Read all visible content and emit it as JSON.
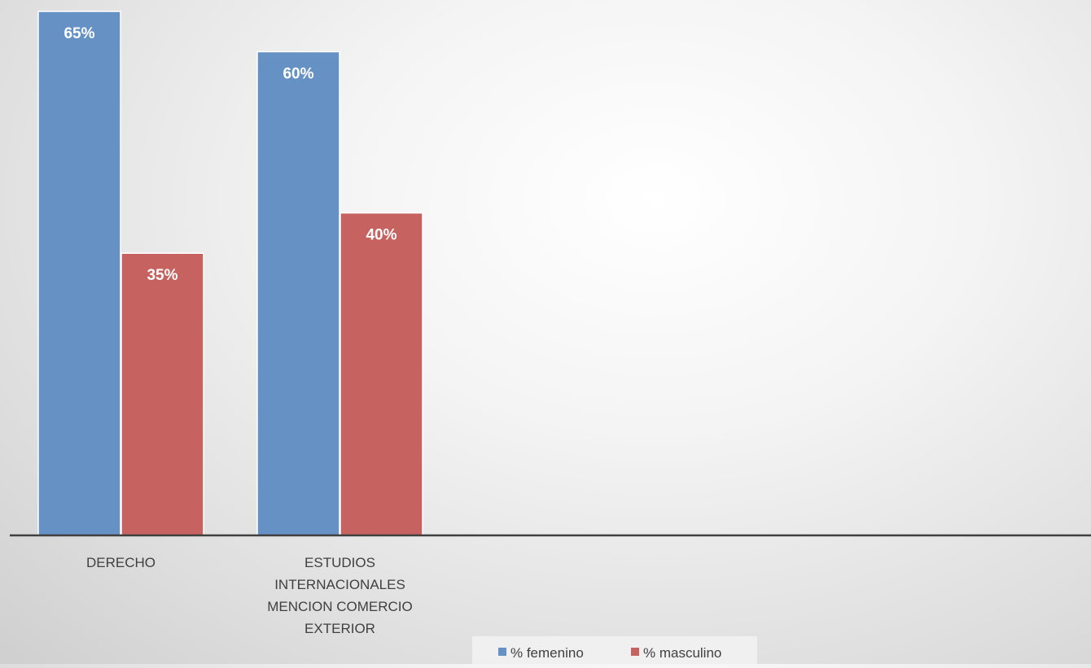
{
  "chart_data": {
    "type": "bar",
    "categories": [
      [
        "DERECHO"
      ],
      [
        "ESTUDIOS",
        "INTERNACIONALES",
        "MENCION COMERCIO",
        "EXTERIOR"
      ]
    ],
    "series": [
      {
        "name": "% femenino",
        "color": "#6591c5",
        "values": [
          65,
          60
        ],
        "labels": [
          "65%",
          "60%"
        ]
      },
      {
        "name": "% masculino",
        "color": "#c6625f",
        "values": [
          35,
          40
        ],
        "labels": [
          "35%",
          "40%"
        ]
      }
    ],
    "ylim": [
      0,
      65
    ],
    "grid": false,
    "legend_position": "bottom"
  }
}
